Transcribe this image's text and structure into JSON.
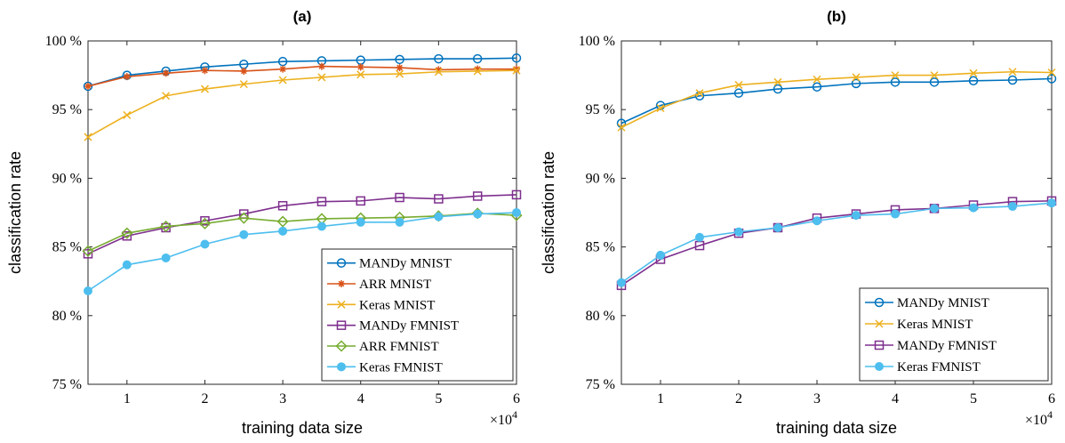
{
  "chart_data": [
    {
      "type": "line",
      "title": "(a)",
      "xlabel": "training data size",
      "ylabel": "classification rate",
      "x_multiplier": "×10^4",
      "xlim": [
        0.5,
        6
      ],
      "ylim": [
        75,
        100
      ],
      "x_ticks": [
        1,
        2,
        3,
        4,
        5,
        6
      ],
      "x_tick_labels": [
        "1",
        "2",
        "3",
        "4",
        "5",
        "6"
      ],
      "y_ticks": [
        75,
        80,
        85,
        90,
        95,
        100
      ],
      "y_tick_labels": [
        "75 %",
        "80 %",
        "85 %",
        "90 %",
        "95 %",
        "100 %"
      ],
      "grid": false,
      "legend_position": "bottom-right",
      "x": [
        0.5,
        1,
        1.5,
        2,
        2.5,
        3,
        3.5,
        4,
        4.5,
        5,
        5.5,
        6
      ],
      "series": [
        {
          "name": "MANDy MNIST",
          "color": "#0072bd",
          "marker": "circle-open",
          "values": [
            96.7,
            97.5,
            97.8,
            98.1,
            98.3,
            98.5,
            98.55,
            98.6,
            98.65,
            98.7,
            98.7,
            98.75
          ]
        },
        {
          "name": "ARR MNIST",
          "color": "#d95319",
          "marker": "asterisk",
          "values": [
            96.7,
            97.4,
            97.65,
            97.85,
            97.8,
            97.95,
            98.15,
            98.1,
            98.05,
            97.9,
            97.95,
            97.95
          ]
        },
        {
          "name": "Keras MNIST",
          "color": "#edb120",
          "marker": "x",
          "values": [
            93.0,
            94.6,
            96.0,
            96.5,
            96.85,
            97.15,
            97.35,
            97.55,
            97.6,
            97.75,
            97.8,
            97.85
          ]
        },
        {
          "name": "MANDy FMNIST",
          "color": "#7e2f8e",
          "marker": "square-open",
          "values": [
            84.5,
            85.8,
            86.4,
            86.9,
            87.4,
            88.0,
            88.3,
            88.35,
            88.6,
            88.5,
            88.7,
            88.8
          ]
        },
        {
          "name": "ARR FMNIST",
          "color": "#77ac30",
          "marker": "diamond-open",
          "values": [
            84.7,
            86.0,
            86.5,
            86.7,
            87.1,
            86.85,
            87.05,
            87.1,
            87.15,
            87.25,
            87.45,
            87.3
          ]
        },
        {
          "name": "Keras FMNIST",
          "color": "#4dbeee",
          "marker": "circle-filled",
          "values": [
            81.8,
            83.7,
            84.2,
            85.2,
            85.9,
            86.15,
            86.5,
            86.8,
            86.8,
            87.2,
            87.4,
            87.5
          ]
        }
      ]
    },
    {
      "type": "line",
      "title": "(b)",
      "xlabel": "training data size",
      "ylabel": "classification rate",
      "x_multiplier": "×10^4",
      "xlim": [
        0.5,
        6
      ],
      "ylim": [
        75,
        100
      ],
      "x_ticks": [
        1,
        2,
        3,
        4,
        5,
        6
      ],
      "x_tick_labels": [
        "1",
        "2",
        "3",
        "4",
        "5",
        "6"
      ],
      "y_ticks": [
        75,
        80,
        85,
        90,
        95,
        100
      ],
      "y_tick_labels": [
        "75 %",
        "80 %",
        "85 %",
        "90 %",
        "95 %",
        "100 %"
      ],
      "grid": false,
      "legend_position": "bottom-right",
      "x": [
        0.5,
        1,
        1.5,
        2,
        2.5,
        3,
        3.5,
        4,
        4.5,
        5,
        5.5,
        6
      ],
      "series": [
        {
          "name": "MANDy MNIST",
          "color": "#0072bd",
          "marker": "circle-open",
          "values": [
            94.0,
            95.3,
            96.0,
            96.2,
            96.5,
            96.65,
            96.9,
            97.0,
            97.0,
            97.1,
            97.15,
            97.25
          ]
        },
        {
          "name": "Keras MNIST",
          "color": "#edb120",
          "marker": "x",
          "values": [
            93.7,
            95.1,
            96.2,
            96.8,
            97.0,
            97.2,
            97.35,
            97.5,
            97.5,
            97.65,
            97.75,
            97.7
          ]
        },
        {
          "name": "MANDy FMNIST",
          "color": "#7e2f8e",
          "marker": "square-open",
          "values": [
            82.2,
            84.1,
            85.1,
            86.0,
            86.4,
            87.1,
            87.4,
            87.7,
            87.8,
            88.05,
            88.3,
            88.35
          ]
        },
        {
          "name": "Keras FMNIST",
          "color": "#4dbeee",
          "marker": "circle-filled",
          "values": [
            82.4,
            84.4,
            85.7,
            86.1,
            86.4,
            86.9,
            87.3,
            87.4,
            87.8,
            87.85,
            87.95,
            88.2
          ]
        }
      ]
    }
  ]
}
